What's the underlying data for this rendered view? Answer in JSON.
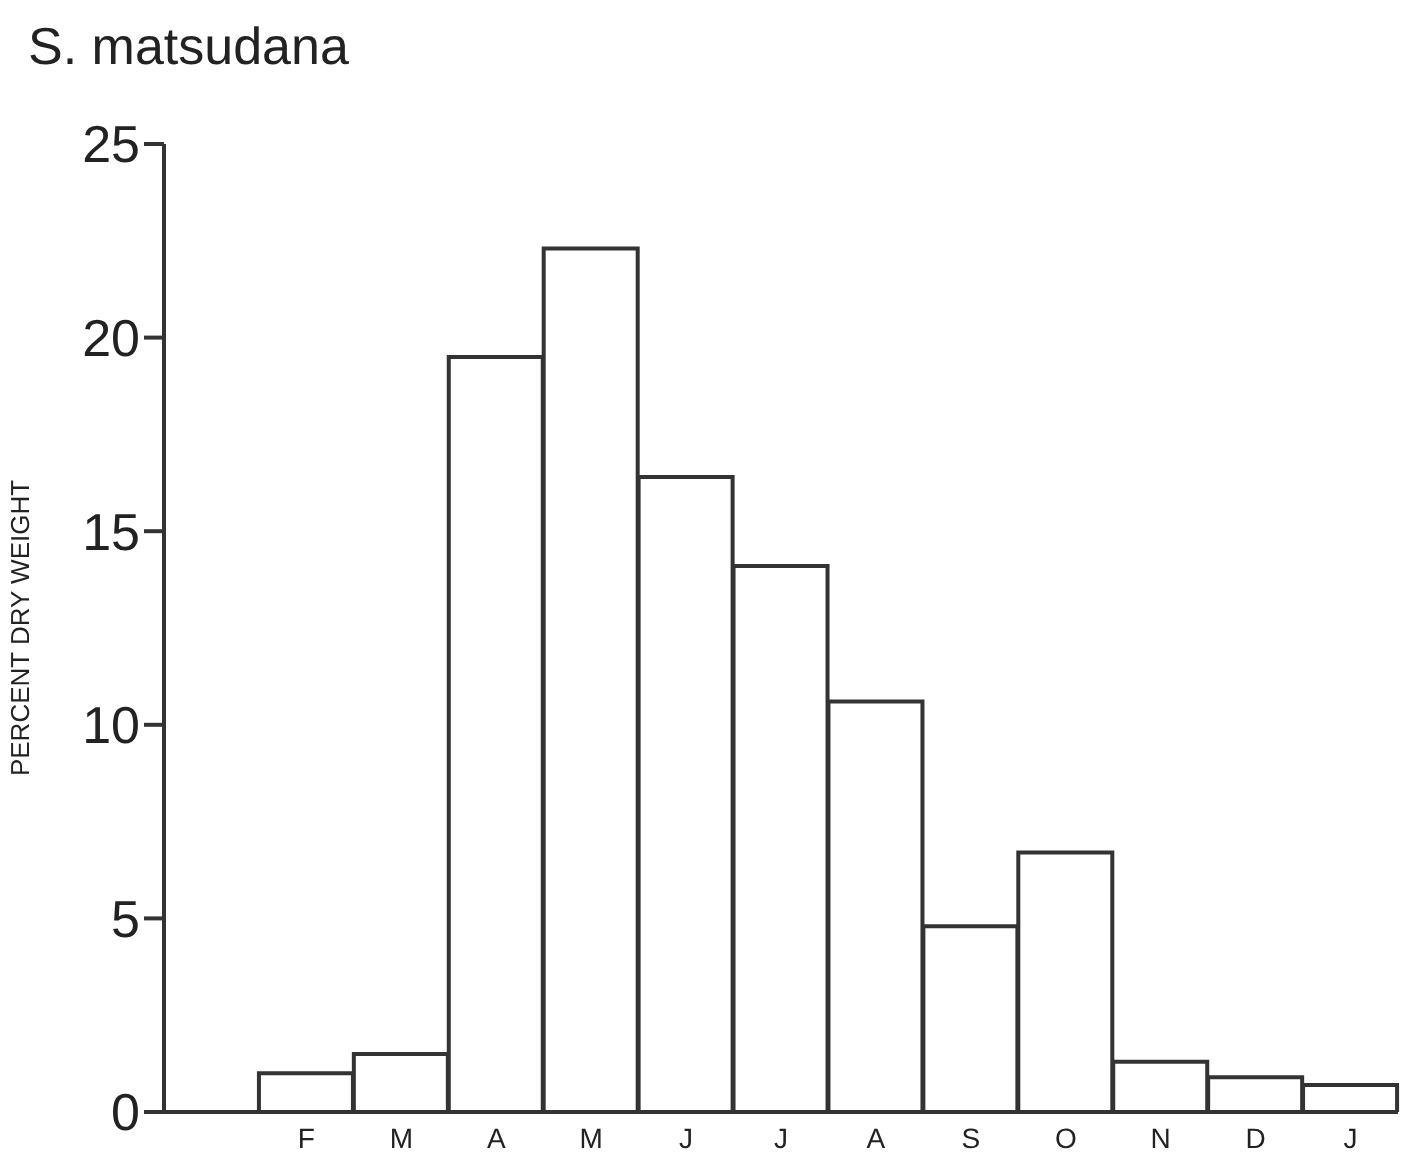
{
  "chart_data": {
    "type": "bar",
    "title": "S. matsudana",
    "ylabel": "PERCENT DRY WEIGHT",
    "categories": [
      null,
      "F",
      "M",
      "A",
      "M",
      "J",
      "J",
      "A",
      "S",
      "O",
      "N",
      "D",
      "J"
    ],
    "values": [
      null,
      1.0,
      1.5,
      19.5,
      22.3,
      16.4,
      14.1,
      10.6,
      4.8,
      6.7,
      1.3,
      0.9,
      0.7
    ],
    "color": "#ffffff",
    "ylim": [
      0,
      25
    ],
    "yticks": [
      0,
      5,
      10,
      15,
      20,
      25
    ],
    "grid": false
  }
}
